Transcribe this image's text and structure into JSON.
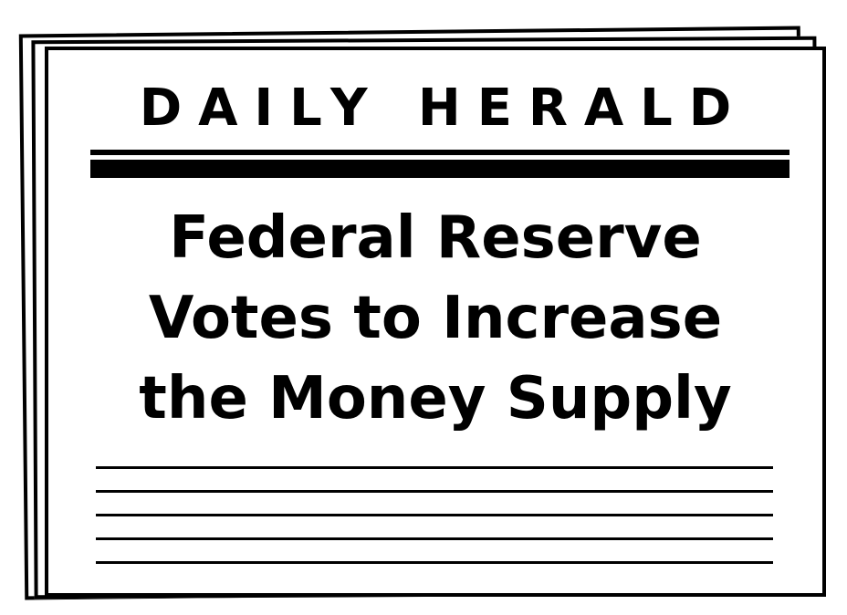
{
  "masthead": "DAILY HERALD",
  "headline": {
    "line1": "Federal Reserve",
    "line2": "Votes to Increase",
    "line3": "the Money Supply"
  }
}
